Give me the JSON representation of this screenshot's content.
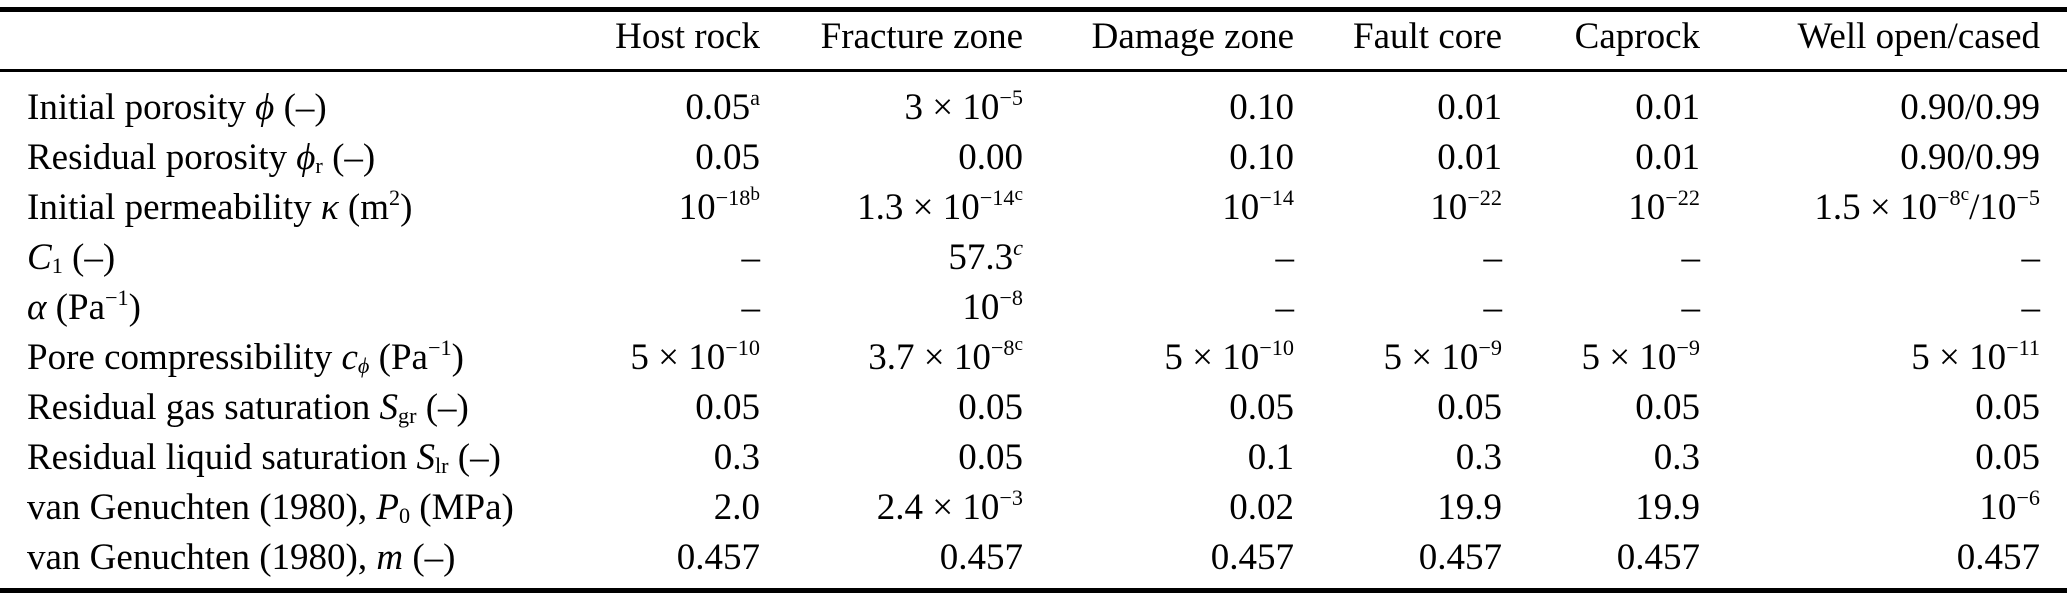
{
  "table": {
    "columns": [
      "",
      "Host rock",
      "Fracture zone",
      "Damage zone",
      "Fault core",
      "Caprock",
      "Well open/cased"
    ],
    "rows": [
      {
        "label": "Initial porosity *ϕ* (–)",
        "values": [
          "0.05^{a}",
          "3 × 10^{−5}",
          "0.10",
          "0.01",
          "0.01",
          "0.90/0.99"
        ]
      },
      {
        "label": "Residual porosity *ϕ*_{r} (–)",
        "values": [
          "0.05",
          "0.00",
          "0.10",
          "0.01",
          "0.01",
          "0.90/0.99"
        ]
      },
      {
        "label": "Initial permeability *κ* (m^{2})",
        "values": [
          "10^{−18}^^{b}",
          "1.3 × 10^{−14}^^{c}",
          "10^{−14}",
          "10^{−22}",
          "10^{−22}",
          "1.5 × 10^{−8}^^{c}/10^{−5}"
        ]
      },
      {
        "label": "*C*_{1} (–)",
        "values": [
          "–",
          "57.3^{*c*}",
          "–",
          "–",
          "–",
          "–"
        ]
      },
      {
        "label": "*α* (Pa^{−1})",
        "values": [
          "–",
          "10^{−8}",
          "–",
          "–",
          "–",
          "–"
        ]
      },
      {
        "label": "Pore compressibility *c*_{*ϕ*} (Pa^{−1})",
        "values": [
          "5 × 10^{−10}",
          "3.7 × 10^{−8}^^{c}",
          "5 × 10^{−10}",
          "5 × 10^{−9}",
          "5 × 10^{−9}",
          "5 × 10^{−11}"
        ]
      },
      {
        "label": "Residual gas saturation *S*_{gr} (–)",
        "values": [
          "0.05",
          "0.05",
          "0.05",
          "0.05",
          "0.05",
          "0.05"
        ]
      },
      {
        "label": "Residual liquid saturation *S*_{lr} (–)",
        "values": [
          "0.3",
          "0.05",
          "0.1",
          "0.3",
          "0.3",
          "0.05"
        ]
      },
      {
        "label": "van Genuchten (1980), *P*_{0} (MPa)",
        "values": [
          "2.0",
          "2.4 × 10^{−3}",
          "0.02",
          "19.9",
          "19.9",
          "10^{−6}"
        ]
      },
      {
        "label": "van Genuchten (1980), *m* (–)",
        "values": [
          "0.457",
          "0.457",
          "0.457",
          "0.457",
          "0.457",
          "0.457"
        ]
      }
    ]
  }
}
